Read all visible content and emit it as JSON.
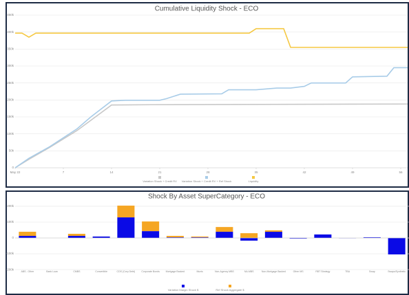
{
  "chart_data": [
    {
      "type": "line",
      "title": "Cumulative Liquidity Shock - ECO",
      "xlim": [
        0,
        57
      ],
      "xticks": [
        {
          "value": 0,
          "label": "May 22"
        },
        7,
        14,
        21,
        28,
        35,
        42,
        49,
        56
      ],
      "ylim": [
        0,
        450
      ],
      "yticks": [
        {
          "value": 0,
          "label": "0"
        },
        {
          "value": 50,
          "label": "50k"
        },
        {
          "value": 100,
          "label": "100k"
        },
        {
          "value": 150,
          "label": "150k"
        },
        {
          "value": 200,
          "label": "200k"
        },
        {
          "value": 250,
          "label": "250k"
        },
        {
          "value": 300,
          "label": "300k"
        },
        {
          "value": 350,
          "label": "350k"
        },
        {
          "value": 400,
          "label": "400k"
        },
        {
          "value": 450,
          "label": "450k"
        }
      ],
      "grid": true,
      "series": [
        {
          "name": "Variation Shock + Credit RV",
          "color": "#c8c8c8",
          "x": [
            0,
            2,
            5,
            9,
            14,
            20,
            57
          ],
          "values": [
            0,
            25,
            60,
            110,
            185,
            186,
            188
          ]
        },
        {
          "name": "Variation Shock + Credit RV + Ref Shock",
          "color": "#a8cce8",
          "x": [
            0,
            2,
            5,
            9,
            11,
            14,
            16,
            21,
            22,
            24,
            30,
            31,
            35,
            38,
            40,
            42,
            43,
            48,
            49,
            54,
            55,
            57
          ],
          "values": [
            0,
            28,
            62,
            115,
            150,
            197,
            199,
            199,
            204,
            217,
            218,
            230,
            230,
            235,
            235,
            240,
            250,
            250,
            268,
            270,
            295,
            295
          ]
        },
        {
          "name": "Liquidity",
          "color": "#f5c842",
          "x": [
            0,
            1,
            2,
            3,
            34,
            35,
            39,
            40,
            57
          ],
          "values": [
            397,
            397,
            385,
            397,
            397,
            410,
            410,
            355,
            355
          ]
        }
      ]
    },
    {
      "type": "bar",
      "title": "Shock By Asset SuperCategory - ECO",
      "categories": [
        "ABS - Other",
        "Bank Loan",
        "CMBS",
        "Convertible",
        "CDS (Corp Debt)",
        "Corporate Bonds",
        "Mortgage Backed",
        "Munis",
        "Non-Agency MBS",
        "NA-MBS",
        "Non-Mortgage Backed",
        "Other MS",
        "RBT Strategy",
        "TBA",
        "Swap",
        "Swaps/Synthetic"
      ],
      "ylim": [
        -230,
        215
      ],
      "yticks": [
        {
          "value": -200,
          "label": "-200k"
        },
        {
          "value": -100,
          "label": "-100k"
        },
        0,
        {
          "value": 100,
          "label": "100k"
        },
        {
          "value": 200,
          "label": "200k"
        }
      ],
      "grid": true,
      "series": [
        {
          "name": "Variation Margin Shock $",
          "color": "#0a0ae6",
          "values": [
            13,
            0,
            13,
            9,
            130,
            43,
            4,
            4,
            39,
            -17,
            39,
            -4,
            22,
            -2,
            4,
            -104
          ]
        },
        {
          "name": "Ref Shock Aggregate $",
          "color": "#f5a623",
          "values": [
            26,
            0,
            13,
            0,
            74,
            61,
            9,
            5,
            30,
            30,
            9,
            0,
            0,
            0,
            0,
            0
          ]
        }
      ]
    }
  ]
}
